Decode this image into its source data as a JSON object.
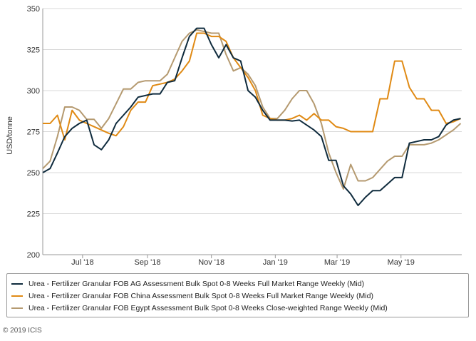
{
  "chart_data": {
    "type": "line",
    "ylabel": "USD/tonne",
    "xlabel": "",
    "ylim": [
      200,
      350
    ],
    "yticks": [
      200,
      225,
      250,
      275,
      300,
      325,
      350
    ],
    "grid": "horizontal",
    "legend_position": "bottom",
    "x_start": "2018-05-24",
    "x_end": "2019-06-28",
    "xticks": [
      {
        "label": "Jul '18",
        "date": "2018-07-01"
      },
      {
        "label": "Sep '18",
        "date": "2018-09-01"
      },
      {
        "label": "Nov '18",
        "date": "2018-11-01"
      },
      {
        "label": "Jan '19",
        "date": "2019-01-01"
      },
      {
        "label": "Mar '19",
        "date": "2019-03-01"
      },
      {
        "label": "May '19",
        "date": "2019-05-01"
      }
    ],
    "series": [
      {
        "name": "Urea - Fertilizer Granular FOB AG Assessment Bulk Spot 0-8 Weeks Full Market Range Weekly (Mid)",
        "color": "#0f2b3d",
        "points": [
          [
            "2018-05-24",
            250
          ],
          [
            "2018-05-31",
            252.5
          ],
          [
            "2018-06-07",
            262
          ],
          [
            "2018-06-14",
            272
          ],
          [
            "2018-06-21",
            277
          ],
          [
            "2018-06-28",
            280
          ],
          [
            "2018-07-05",
            282
          ],
          [
            "2018-07-12",
            267
          ],
          [
            "2018-07-19",
            264
          ],
          [
            "2018-07-26",
            270
          ],
          [
            "2018-08-02",
            280
          ],
          [
            "2018-08-09",
            285
          ],
          [
            "2018-08-16",
            290
          ],
          [
            "2018-08-23",
            296
          ],
          [
            "2018-08-30",
            297
          ],
          [
            "2018-09-06",
            298
          ],
          [
            "2018-09-13",
            298
          ],
          [
            "2018-09-20",
            305
          ],
          [
            "2018-09-27",
            306
          ],
          [
            "2018-10-04",
            320
          ],
          [
            "2018-10-11",
            333
          ],
          [
            "2018-10-18",
            338
          ],
          [
            "2018-10-25",
            338
          ],
          [
            "2018-11-01",
            328
          ],
          [
            "2018-11-08",
            320
          ],
          [
            "2018-11-15",
            328
          ],
          [
            "2018-11-22",
            320
          ],
          [
            "2018-11-29",
            318
          ],
          [
            "2018-12-06",
            300
          ],
          [
            "2018-12-13",
            296
          ],
          [
            "2018-12-20",
            288
          ],
          [
            "2018-12-27",
            282
          ],
          [
            "2019-01-03",
            282
          ],
          [
            "2019-01-10",
            282
          ],
          [
            "2019-01-17",
            281.5
          ],
          [
            "2019-01-24",
            282
          ],
          [
            "2019-01-31",
            279
          ],
          [
            "2019-02-07",
            276
          ],
          [
            "2019-02-14",
            272
          ],
          [
            "2019-02-21",
            257.5
          ],
          [
            "2019-02-28",
            257.5
          ],
          [
            "2019-03-07",
            242
          ],
          [
            "2019-03-14",
            237
          ],
          [
            "2019-03-21",
            230
          ],
          [
            "2019-03-28",
            235
          ],
          [
            "2019-04-04",
            239
          ],
          [
            "2019-04-11",
            239
          ],
          [
            "2019-04-18",
            243
          ],
          [
            "2019-04-25",
            247
          ],
          [
            "2019-05-02",
            247
          ],
          [
            "2019-05-09",
            268
          ],
          [
            "2019-05-16",
            269
          ],
          [
            "2019-05-23",
            270
          ],
          [
            "2019-05-30",
            270
          ],
          [
            "2019-06-06",
            272
          ],
          [
            "2019-06-13",
            279
          ],
          [
            "2019-06-20",
            282
          ],
          [
            "2019-06-27",
            283
          ]
        ]
      },
      {
        "name": "Urea - Fertilizer Granular FOB China Assessment Bulk Spot 0-8 Weeks Full Market Range Weekly (Mid)",
        "color": "#e08a14",
        "points": [
          [
            "2018-05-24",
            280
          ],
          [
            "2018-05-31",
            280
          ],
          [
            "2018-06-07",
            285
          ],
          [
            "2018-06-14",
            270
          ],
          [
            "2018-06-21",
            288
          ],
          [
            "2018-06-28",
            282
          ],
          [
            "2018-07-05",
            280
          ],
          [
            "2018-07-12",
            278
          ],
          [
            "2018-07-19",
            276
          ],
          [
            "2018-07-26",
            274
          ],
          [
            "2018-08-02",
            272.5
          ],
          [
            "2018-08-09",
            278
          ],
          [
            "2018-08-16",
            288
          ],
          [
            "2018-08-23",
            293
          ],
          [
            "2018-08-30",
            293
          ],
          [
            "2018-09-06",
            303
          ],
          [
            "2018-09-13",
            304
          ],
          [
            "2018-09-20",
            305
          ],
          [
            "2018-09-27",
            307
          ],
          [
            "2018-10-04",
            312
          ],
          [
            "2018-10-11",
            318
          ],
          [
            "2018-10-18",
            335
          ],
          [
            "2018-10-25",
            335
          ],
          [
            "2018-11-01",
            333
          ],
          [
            "2018-11-08",
            333
          ],
          [
            "2018-11-15",
            330
          ],
          [
            "2018-11-22",
            320
          ],
          [
            "2018-11-29",
            314
          ],
          [
            "2018-12-06",
            308
          ],
          [
            "2018-12-13",
            300
          ],
          [
            "2018-12-20",
            285
          ],
          [
            "2018-12-27",
            283
          ],
          [
            "2019-01-03",
            282
          ],
          [
            "2019-01-10",
            282
          ],
          [
            "2019-01-17",
            283
          ],
          [
            "2019-01-24",
            285
          ],
          [
            "2019-01-31",
            282
          ],
          [
            "2019-02-07",
            286
          ],
          [
            "2019-02-14",
            282
          ],
          [
            "2019-02-21",
            282
          ],
          [
            "2019-02-28",
            278
          ],
          [
            "2019-03-07",
            277
          ],
          [
            "2019-03-14",
            275
          ],
          [
            "2019-03-21",
            275
          ],
          [
            "2019-03-28",
            275
          ],
          [
            "2019-04-04",
            275
          ],
          [
            "2019-04-11",
            295
          ],
          [
            "2019-04-18",
            295
          ],
          [
            "2019-04-25",
            318
          ],
          [
            "2019-05-02",
            318
          ],
          [
            "2019-05-09",
            302
          ],
          [
            "2019-05-16",
            295
          ],
          [
            "2019-05-23",
            295
          ],
          [
            "2019-05-30",
            288
          ],
          [
            "2019-06-06",
            288
          ],
          [
            "2019-06-13",
            280
          ],
          [
            "2019-06-20",
            281
          ],
          [
            "2019-06-27",
            283
          ]
        ]
      },
      {
        "name": "Urea - Fertilizer Granular FOB Egypt Assessment Bulk Spot 0-8 Weeks Close-weighted Range Weekly (Mid)",
        "color": "#b59a70",
        "points": [
          [
            "2018-05-24",
            252.5
          ],
          [
            "2018-05-31",
            257
          ],
          [
            "2018-06-07",
            272
          ],
          [
            "2018-06-14",
            290
          ],
          [
            "2018-06-21",
            290
          ],
          [
            "2018-06-28",
            288
          ],
          [
            "2018-07-05",
            282.5
          ],
          [
            "2018-07-12",
            282.5
          ],
          [
            "2018-07-19",
            277
          ],
          [
            "2018-07-26",
            283
          ],
          [
            "2018-08-02",
            292
          ],
          [
            "2018-08-09",
            301
          ],
          [
            "2018-08-16",
            301
          ],
          [
            "2018-08-23",
            305
          ],
          [
            "2018-08-30",
            306
          ],
          [
            "2018-09-06",
            306
          ],
          [
            "2018-09-13",
            306
          ],
          [
            "2018-09-20",
            310
          ],
          [
            "2018-09-27",
            320
          ],
          [
            "2018-10-04",
            330
          ],
          [
            "2018-10-11",
            335
          ],
          [
            "2018-10-18",
            337
          ],
          [
            "2018-10-25",
            336
          ],
          [
            "2018-11-01",
            335
          ],
          [
            "2018-11-08",
            335
          ],
          [
            "2018-11-15",
            322
          ],
          [
            "2018-11-22",
            312
          ],
          [
            "2018-11-29",
            314
          ],
          [
            "2018-12-06",
            310
          ],
          [
            "2018-12-13",
            303
          ],
          [
            "2018-12-20",
            290
          ],
          [
            "2018-12-27",
            283
          ],
          [
            "2019-01-03",
            283
          ],
          [
            "2019-01-10",
            288
          ],
          [
            "2019-01-17",
            295
          ],
          [
            "2019-01-24",
            300
          ],
          [
            "2019-01-31",
            300
          ],
          [
            "2019-02-07",
            292
          ],
          [
            "2019-02-14",
            280
          ],
          [
            "2019-02-21",
            262
          ],
          [
            "2019-02-28",
            250
          ],
          [
            "2019-03-07",
            240
          ],
          [
            "2019-03-14",
            255
          ],
          [
            "2019-03-21",
            245
          ],
          [
            "2019-03-28",
            245
          ],
          [
            "2019-04-04",
            247
          ],
          [
            "2019-04-11",
            252
          ],
          [
            "2019-04-18",
            257
          ],
          [
            "2019-04-25",
            260
          ],
          [
            "2019-05-02",
            260
          ],
          [
            "2019-05-09",
            267
          ],
          [
            "2019-05-16",
            267
          ],
          [
            "2019-05-23",
            267
          ],
          [
            "2019-05-30",
            268
          ],
          [
            "2019-06-06",
            270
          ],
          [
            "2019-06-13",
            273
          ],
          [
            "2019-06-20",
            276
          ],
          [
            "2019-06-27",
            280
          ]
        ]
      }
    ]
  },
  "legend": {
    "items": [
      {
        "label": "Urea - Fertilizer Granular FOB AG Assessment Bulk Spot 0-8 Weeks Full Market Range Weekly (Mid)",
        "color": "#0f2b3d"
      },
      {
        "label": "Urea - Fertilizer Granular FOB China Assessment Bulk Spot 0-8 Weeks Full Market Range Weekly (Mid)",
        "color": "#e08a14"
      },
      {
        "label": "Urea - Fertilizer Granular FOB Egypt Assessment Bulk Spot 0-8 Weeks Close-weighted Range Weekly (Mid)",
        "color": "#b59a70"
      }
    ]
  },
  "footer": {
    "copyright": "© 2019 ICIS"
  }
}
